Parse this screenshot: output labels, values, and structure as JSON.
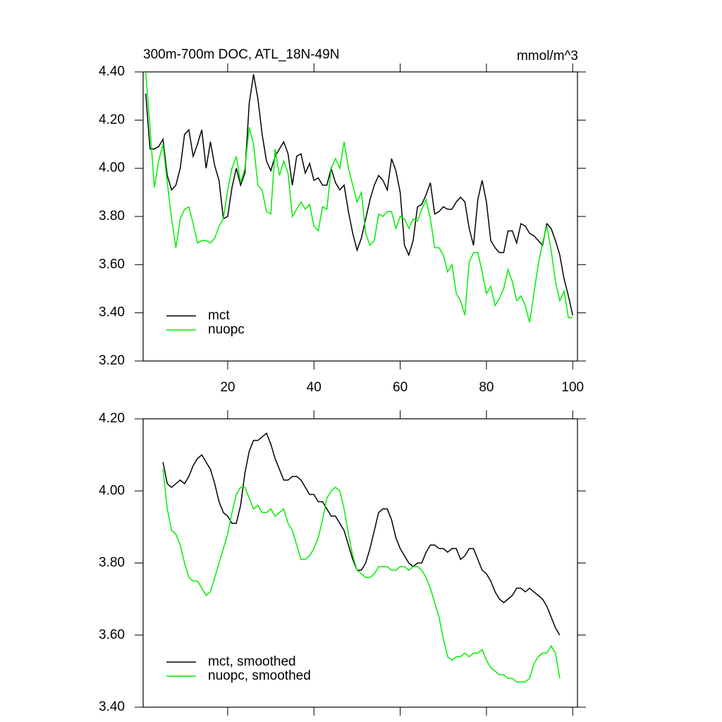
{
  "chart_data": [
    {
      "type": "line",
      "title": "300m-700m DOC, ATL_18N-49N",
      "units": "mmol/m^3",
      "x": [
        1,
        2,
        3,
        4,
        5,
        6,
        7,
        8,
        9,
        10,
        11,
        12,
        13,
        14,
        15,
        16,
        17,
        18,
        19,
        20,
        21,
        22,
        23,
        24,
        25,
        26,
        27,
        28,
        29,
        30,
        31,
        32,
        33,
        34,
        35,
        36,
        37,
        38,
        39,
        40,
        41,
        42,
        43,
        44,
        45,
        46,
        47,
        48,
        49,
        50,
        51,
        52,
        53,
        54,
        55,
        56,
        57,
        58,
        59,
        60,
        61,
        62,
        63,
        64,
        65,
        66,
        67,
        68,
        69,
        70,
        71,
        72,
        73,
        74,
        75,
        76,
        77,
        78,
        79,
        80,
        81,
        82,
        83,
        84,
        85,
        86,
        87,
        88,
        89,
        90,
        91,
        92,
        93,
        94,
        95,
        96,
        97,
        98,
        99,
        100
      ],
      "series": [
        {
          "name": "mct",
          "color": "#000000",
          "values": [
            4.31,
            4.08,
            4.08,
            4.09,
            4.12,
            3.97,
            3.91,
            3.93,
            4.0,
            4.14,
            4.16,
            4.05,
            4.1,
            4.16,
            4.0,
            4.11,
            4.01,
            3.95,
            3.79,
            3.8,
            3.92,
            4.0,
            3.93,
            3.98,
            4.27,
            4.39,
            4.29,
            4.14,
            4.03,
            3.99,
            4.05,
            4.08,
            4.11,
            4.06,
            3.93,
            4.05,
            4.06,
            3.98,
            4.02,
            3.95,
            3.96,
            3.93,
            3.93,
            4.0,
            3.94,
            3.91,
            3.93,
            3.82,
            3.73,
            3.66,
            3.71,
            3.79,
            3.87,
            3.93,
            3.97,
            3.95,
            3.91,
            4.04,
            3.99,
            3.9,
            3.68,
            3.64,
            3.7,
            3.84,
            3.85,
            3.89,
            3.94,
            3.81,
            3.82,
            3.84,
            3.83,
            3.83,
            3.86,
            3.88,
            3.86,
            3.75,
            3.68,
            3.87,
            3.95,
            3.86,
            3.7,
            3.67,
            3.65,
            3.65,
            3.74,
            3.74,
            3.69,
            3.77,
            3.76,
            3.73,
            3.72,
            3.7,
            3.68,
            3.77,
            3.75,
            3.7,
            3.64,
            3.54,
            3.47,
            3.39
          ]
        },
        {
          "name": "nuopc",
          "color": "#00ee00",
          "values": [
            4.4,
            4.17,
            3.92,
            4.03,
            4.1,
            3.94,
            3.79,
            3.67,
            3.79,
            3.83,
            3.84,
            3.77,
            3.69,
            3.7,
            3.7,
            3.69,
            3.71,
            3.76,
            3.79,
            3.91,
            4.0,
            4.05,
            3.94,
            4.0,
            4.17,
            4.1,
            3.93,
            3.91,
            3.82,
            3.81,
            4.08,
            3.97,
            4.03,
            3.98,
            3.8,
            3.83,
            3.86,
            3.83,
            3.85,
            3.76,
            3.74,
            3.84,
            3.83,
            4.0,
            4.04,
            4.0,
            4.11,
            4.0,
            3.93,
            3.86,
            3.9,
            3.73,
            3.68,
            3.7,
            3.81,
            3.8,
            3.82,
            3.82,
            3.75,
            3.8,
            3.79,
            3.75,
            3.79,
            3.78,
            3.83,
            3.87,
            3.79,
            3.67,
            3.67,
            3.64,
            3.57,
            3.6,
            3.48,
            3.45,
            3.39,
            3.61,
            3.65,
            3.65,
            3.57,
            3.48,
            3.51,
            3.43,
            3.46,
            3.5,
            3.58,
            3.53,
            3.45,
            3.47,
            3.43,
            3.36,
            3.48,
            3.6,
            3.69,
            3.76,
            3.66,
            3.53,
            3.45,
            3.49,
            3.38,
            3.38
          ]
        }
      ],
      "xlim": [
        0.4,
        101.1
      ],
      "xticks": [
        20,
        40,
        60,
        80,
        100
      ],
      "x_tick_labels": true,
      "ylim": [
        3.2,
        4.4
      ],
      "yticks": [
        {
          "value": 3.2,
          "label": "3.20"
        },
        {
          "value": 3.4,
          "label": "3.40"
        },
        {
          "value": 3.6,
          "label": "3.60"
        },
        {
          "value": 3.8,
          "label": "3.80"
        },
        {
          "value": 4.0,
          "label": "4.00"
        },
        {
          "value": 4.2,
          "label": "4.20"
        },
        {
          "value": 4.4,
          "label": "4.40"
        }
      ],
      "legend": "lower left"
    },
    {
      "type": "line",
      "x": [
        5,
        6,
        7,
        8,
        9,
        10,
        11,
        12,
        13,
        14,
        15,
        16,
        17,
        18,
        19,
        20,
        21,
        22,
        23,
        24,
        25,
        26,
        27,
        28,
        29,
        30,
        31,
        32,
        33,
        34,
        35,
        36,
        37,
        38,
        39,
        40,
        41,
        42,
        43,
        44,
        45,
        46,
        47,
        48,
        49,
        50,
        51,
        52,
        53,
        54,
        55,
        56,
        57,
        58,
        59,
        60,
        61,
        62,
        63,
        64,
        65,
        66,
        67,
        68,
        69,
        70,
        71,
        72,
        73,
        74,
        75,
        76,
        77,
        78,
        79,
        80,
        81,
        82,
        83,
        84,
        85,
        86,
        87,
        88,
        89,
        90,
        91,
        92,
        93,
        94,
        95,
        96,
        97
      ],
      "series": [
        {
          "name": "mct, smoothed",
          "color": "#000000",
          "values": [
            4.08,
            4.02,
            4.01,
            4.02,
            4.03,
            4.02,
            4.04,
            4.07,
            4.09,
            4.1,
            4.08,
            4.06,
            4.02,
            3.97,
            3.94,
            3.93,
            3.91,
            3.91,
            3.96,
            4.05,
            4.11,
            4.14,
            4.14,
            4.15,
            4.16,
            4.13,
            4.09,
            4.06,
            4.03,
            4.03,
            4.04,
            4.04,
            4.03,
            4.01,
            3.99,
            3.99,
            3.97,
            3.97,
            3.95,
            3.93,
            3.93,
            3.91,
            3.89,
            3.85,
            3.81,
            3.78,
            3.78,
            3.8,
            3.84,
            3.89,
            3.94,
            3.95,
            3.95,
            3.92,
            3.87,
            3.84,
            3.82,
            3.8,
            3.79,
            3.8,
            3.8,
            3.83,
            3.85,
            3.85,
            3.84,
            3.84,
            3.83,
            3.84,
            3.84,
            3.81,
            3.82,
            3.84,
            3.84,
            3.81,
            3.78,
            3.77,
            3.75,
            3.72,
            3.7,
            3.69,
            3.7,
            3.71,
            3.73,
            3.73,
            3.72,
            3.73,
            3.72,
            3.71,
            3.7,
            3.68,
            3.65,
            3.62,
            3.6
          ]
        },
        {
          "name": "nuopc, smoothed",
          "color": "#00ee00",
          "values": [
            4.06,
            3.95,
            3.89,
            3.88,
            3.85,
            3.8,
            3.76,
            3.75,
            3.75,
            3.73,
            3.71,
            3.72,
            3.76,
            3.8,
            3.84,
            3.88,
            3.94,
            3.99,
            4.01,
            4.01,
            3.98,
            3.95,
            3.96,
            3.94,
            3.94,
            3.95,
            3.93,
            3.94,
            3.95,
            3.91,
            3.89,
            3.85,
            3.81,
            3.81,
            3.82,
            3.84,
            3.87,
            3.92,
            3.98,
            4.0,
            4.01,
            4.0,
            3.95,
            3.88,
            3.82,
            3.78,
            3.77,
            3.76,
            3.76,
            3.77,
            3.79,
            3.79,
            3.79,
            3.78,
            3.78,
            3.79,
            3.79,
            3.78,
            3.79,
            3.79,
            3.78,
            3.76,
            3.73,
            3.69,
            3.65,
            3.59,
            3.54,
            3.53,
            3.54,
            3.54,
            3.55,
            3.54,
            3.55,
            3.55,
            3.56,
            3.53,
            3.51,
            3.5,
            3.49,
            3.49,
            3.48,
            3.48,
            3.47,
            3.47,
            3.47,
            3.48,
            3.52,
            3.54,
            3.55,
            3.55,
            3.57,
            3.55,
            3.48
          ]
        }
      ],
      "xlim": [
        0.4,
        101.1
      ],
      "xticks": [
        20,
        40,
        60,
        80,
        100
      ],
      "x_tick_labels": false,
      "ylim": [
        3.4,
        4.2
      ],
      "yticks": [
        {
          "value": 3.4,
          "label": "3.40"
        },
        {
          "value": 3.6,
          "label": "3.60"
        },
        {
          "value": 3.8,
          "label": "3.80"
        },
        {
          "value": 4.0,
          "label": "4.00"
        },
        {
          "value": 4.2,
          "label": "4.20"
        }
      ],
      "legend": "lower left"
    }
  ]
}
